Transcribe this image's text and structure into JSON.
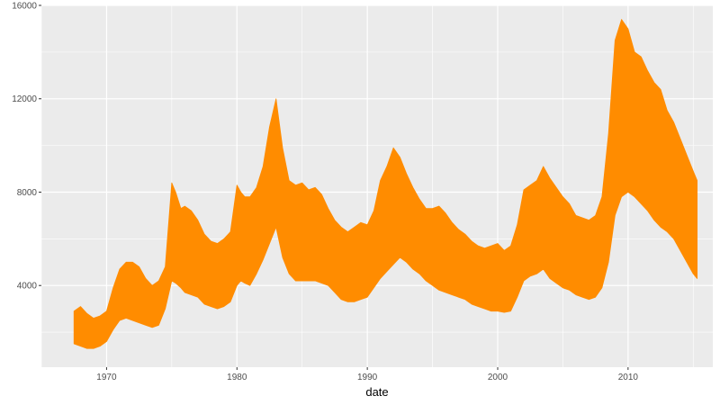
{
  "chart_data": {
    "type": "area",
    "title": "",
    "xlabel": "date",
    "ylabel": "",
    "grid": true,
    "xlim": [
      1965.0,
      2016.5
    ],
    "ylim": [
      500,
      16000
    ],
    "x_ticks": [
      1970,
      1980,
      1990,
      2000,
      2010
    ],
    "x_tick_labels": [
      "1970",
      "1980",
      "1990",
      "2000",
      "2010"
    ],
    "y_ticks": [
      4000,
      8000,
      12000,
      16000
    ],
    "y_tick_labels": [
      "4000",
      "8000",
      "12000",
      "16000"
    ],
    "colors": {
      "fill": "#ff8c00",
      "panel": "#ebebeb",
      "grid": "#ffffff"
    },
    "series": [
      {
        "x": [
          1967.5,
          1968.0,
          1968.5,
          1969.0,
          1969.5,
          1970.0,
          1970.5,
          1971.0,
          1971.5,
          1972.0,
          1972.5,
          1973.0,
          1973.5,
          1974.0,
          1974.5,
          1975.0,
          1975.3,
          1975.7,
          1976.0,
          1976.5,
          1977.0,
          1977.5,
          1978.0,
          1978.5,
          1979.0,
          1979.5,
          1980.0,
          1980.3,
          1980.6,
          1981.0,
          1981.5,
          1982.0,
          1982.5,
          1983.0,
          1983.5,
          1984.0,
          1984.5,
          1985.0,
          1985.5,
          1986.0,
          1986.5,
          1987.0,
          1987.5,
          1988.0,
          1988.5,
          1989.0,
          1989.5,
          1990.0,
          1990.5,
          1991.0,
          1991.5,
          1992.0,
          1992.5,
          1993.0,
          1993.5,
          1994.0,
          1994.5,
          1995.0,
          1995.5,
          1996.0,
          1996.5,
          1997.0,
          1997.5,
          1998.0,
          1998.5,
          1999.0,
          1999.5,
          2000.0,
          2000.5,
          2001.0,
          2001.5,
          2002.0,
          2002.5,
          2003.0,
          2003.5,
          2004.0,
          2004.5,
          2005.0,
          2005.5,
          2006.0,
          2006.5,
          2007.0,
          2007.5,
          2008.0,
          2008.5,
          2009.0,
          2009.5,
          2010.0,
          2010.5,
          2011.0,
          2011.5,
          2012.0,
          2012.5,
          2013.0,
          2013.5,
          2014.0,
          2014.5,
          2015.0,
          2015.3
        ],
        "lower": [
          1500,
          1400,
          1300,
          1300,
          1400,
          1600,
          2100,
          2500,
          2600,
          2500,
          2400,
          2300,
          2200,
          2300,
          3000,
          4200,
          4100,
          3900,
          3700,
          3600,
          3500,
          3200,
          3100,
          3000,
          3100,
          3300,
          4000,
          4200,
          4100,
          4000,
          4500,
          5100,
          5800,
          6500,
          5200,
          4500,
          4200,
          4200,
          4200,
          4200,
          4100,
          4000,
          3700,
          3400,
          3300,
          3300,
          3400,
          3500,
          3900,
          4300,
          4600,
          4900,
          5200,
          5000,
          4700,
          4500,
          4200,
          4000,
          3800,
          3700,
          3600,
          3500,
          3400,
          3200,
          3100,
          3000,
          2900,
          2900,
          2850,
          2900,
          3500,
          4200,
          4400,
          4500,
          4700,
          4300,
          4100,
          3900,
          3800,
          3600,
          3500,
          3400,
          3500,
          3900,
          5000,
          7000,
          7800,
          8000,
          7800,
          7500,
          7200,
          6800,
          6500,
          6300,
          6000,
          5500,
          5000,
          4500,
          4300
        ],
        "upper": [
          2900,
          3100,
          2800,
          2600,
          2700,
          2900,
          3900,
          4700,
          5000,
          5000,
          4800,
          4300,
          4000,
          4200,
          4800,
          8400,
          8000,
          7300,
          7400,
          7200,
          6800,
          6200,
          5900,
          5800,
          6000,
          6300,
          8300,
          8000,
          7800,
          7800,
          8200,
          9100,
          10800,
          12000,
          9900,
          8500,
          8300,
          8400,
          8100,
          8200,
          7900,
          7300,
          6800,
          6500,
          6300,
          6500,
          6700,
          6600,
          7200,
          8500,
          9100,
          9900,
          9500,
          8800,
          8200,
          7700,
          7300,
          7300,
          7400,
          7100,
          6700,
          6400,
          6200,
          5900,
          5700,
          5600,
          5700,
          5800,
          5500,
          5700,
          6600,
          8100,
          8300,
          8500,
          9100,
          8600,
          8200,
          7800,
          7500,
          7000,
          6900,
          6800,
          7000,
          7800,
          10500,
          14500,
          15400,
          15000,
          14000,
          13800,
          13200,
          12700,
          12400,
          11500,
          11000,
          10300,
          9600,
          8900,
          8500
        ]
      }
    ]
  }
}
